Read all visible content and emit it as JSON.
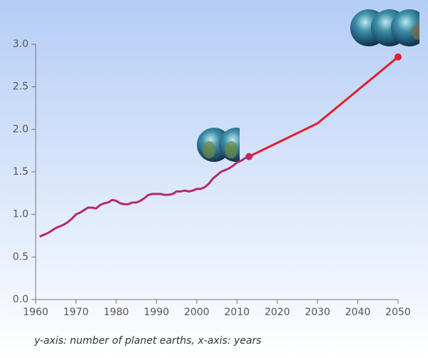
{
  "chart_data": {
    "type": "line",
    "axis_caption": "y-axis: number of planet earths, x-axis: years",
    "series": [
      {
        "color": "#b5296f",
        "x": [
          1961,
          1962,
          1963,
          1964,
          1965,
          1966,
          1967,
          1968,
          1969,
          1970,
          1971,
          1972,
          1973,
          1974,
          1975,
          1976,
          1977,
          1978,
          1979,
          1980,
          1981,
          1982,
          1983,
          1984,
          1985,
          1986,
          1987,
          1988,
          1989,
          1990,
          1991,
          1992,
          1993,
          1994,
          1995,
          1996,
          1997,
          1998,
          1999,
          2000,
          2001,
          2002,
          2003,
          2004,
          2005,
          2006,
          2007,
          2008,
          2009,
          2010,
          2011,
          2012,
          2013
        ],
        "values": [
          0.74,
          0.76,
          0.78,
          0.81,
          0.84,
          0.86,
          0.88,
          0.91,
          0.95,
          1.0,
          1.02,
          1.05,
          1.08,
          1.08,
          1.07,
          1.11,
          1.13,
          1.14,
          1.17,
          1.16,
          1.13,
          1.12,
          1.12,
          1.14,
          1.14,
          1.16,
          1.19,
          1.23,
          1.24,
          1.24,
          1.24,
          1.23,
          1.23,
          1.24,
          1.27,
          1.27,
          1.28,
          1.27,
          1.28,
          1.3,
          1.3,
          1.32,
          1.36,
          1.42,
          1.46,
          1.5,
          1.52,
          1.54,
          1.57,
          1.61,
          1.63,
          1.66,
          1.68
        ]
      },
      {
        "color": "#e0202e",
        "x": [
          2013,
          2030,
          2050
        ],
        "values": [
          1.68,
          2.07,
          2.85
        ]
      }
    ],
    "xlim": [
      1960,
      2050
    ],
    "xticks": [
      1960,
      1970,
      1980,
      1990,
      2000,
      2010,
      2020,
      2030,
      2040,
      2050
    ],
    "ylim": [
      0,
      3
    ],
    "yticks": [
      {
        "value": 0,
        "label": "0.0"
      },
      {
        "value": 0.5,
        "label": "0.5"
      },
      {
        "value": 1,
        "label": "1.0"
      },
      {
        "value": 1.5,
        "label": "1.5"
      },
      {
        "value": 2,
        "label": "2.0"
      },
      {
        "value": 2.5,
        "label": "2.5"
      },
      {
        "value": 3,
        "label": "3.0"
      }
    ],
    "grid": false
  }
}
